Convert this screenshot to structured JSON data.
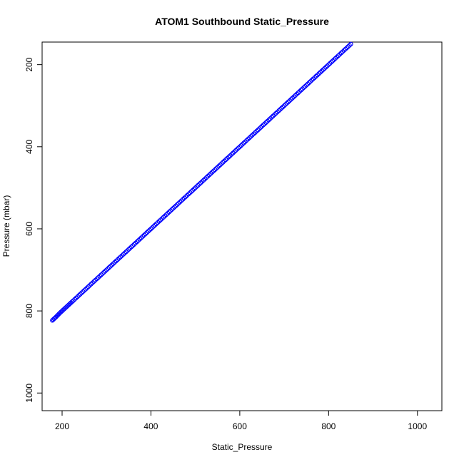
{
  "chart_data": {
    "type": "scatter",
    "title": "ATOM1 Southbound Static_Pressure",
    "xlabel": "Static_Pressure",
    "ylabel": "Pressure (mbar)",
    "xlim": [
      155,
      1055
    ],
    "ylim": [
      1043,
      145
    ],
    "y_reversed": true,
    "x_ticks": [
      200,
      400,
      600,
      800,
      1000
    ],
    "y_ticks": [
      200,
      400,
      600,
      800,
      1000
    ],
    "grid": false,
    "marker": "open-circle",
    "point_color": "#0000ff",
    "series": [
      {
        "points": [
          [
            178,
            823
          ],
          [
            186,
            815
          ],
          [
            195,
            805
          ],
          [
            205,
            795
          ],
          [
            215,
            785
          ],
          [
            225,
            775
          ],
          [
            238,
            762
          ],
          [
            250,
            750
          ],
          [
            262,
            738
          ],
          [
            275,
            725
          ],
          [
            288,
            712
          ],
          [
            300,
            700
          ],
          [
            312,
            688
          ],
          [
            325,
            675
          ],
          [
            338,
            662
          ],
          [
            350,
            650
          ],
          [
            362,
            638
          ],
          [
            375,
            625
          ],
          [
            388,
            612
          ],
          [
            400,
            600
          ],
          [
            412,
            588
          ],
          [
            425,
            575
          ],
          [
            438,
            562
          ],
          [
            450,
            550
          ],
          [
            462,
            538
          ],
          [
            475,
            525
          ],
          [
            488,
            512
          ],
          [
            500,
            500
          ],
          [
            512,
            488
          ],
          [
            525,
            475
          ],
          [
            538,
            462
          ],
          [
            550,
            450
          ],
          [
            562,
            438
          ],
          [
            575,
            425
          ],
          [
            588,
            412
          ],
          [
            600,
            400
          ],
          [
            612,
            388
          ],
          [
            625,
            375
          ],
          [
            638,
            362
          ],
          [
            650,
            350
          ],
          [
            662,
            338
          ],
          [
            675,
            325
          ],
          [
            688,
            312
          ],
          [
            700,
            300
          ],
          [
            712,
            288
          ],
          [
            725,
            275
          ],
          [
            738,
            262
          ],
          [
            750,
            250
          ],
          [
            762,
            238
          ],
          [
            775,
            225
          ],
          [
            788,
            212
          ],
          [
            800,
            200
          ],
          [
            812,
            188
          ],
          [
            825,
            175
          ],
          [
            838,
            162
          ],
          [
            850,
            150
          ]
        ]
      }
    ]
  }
}
